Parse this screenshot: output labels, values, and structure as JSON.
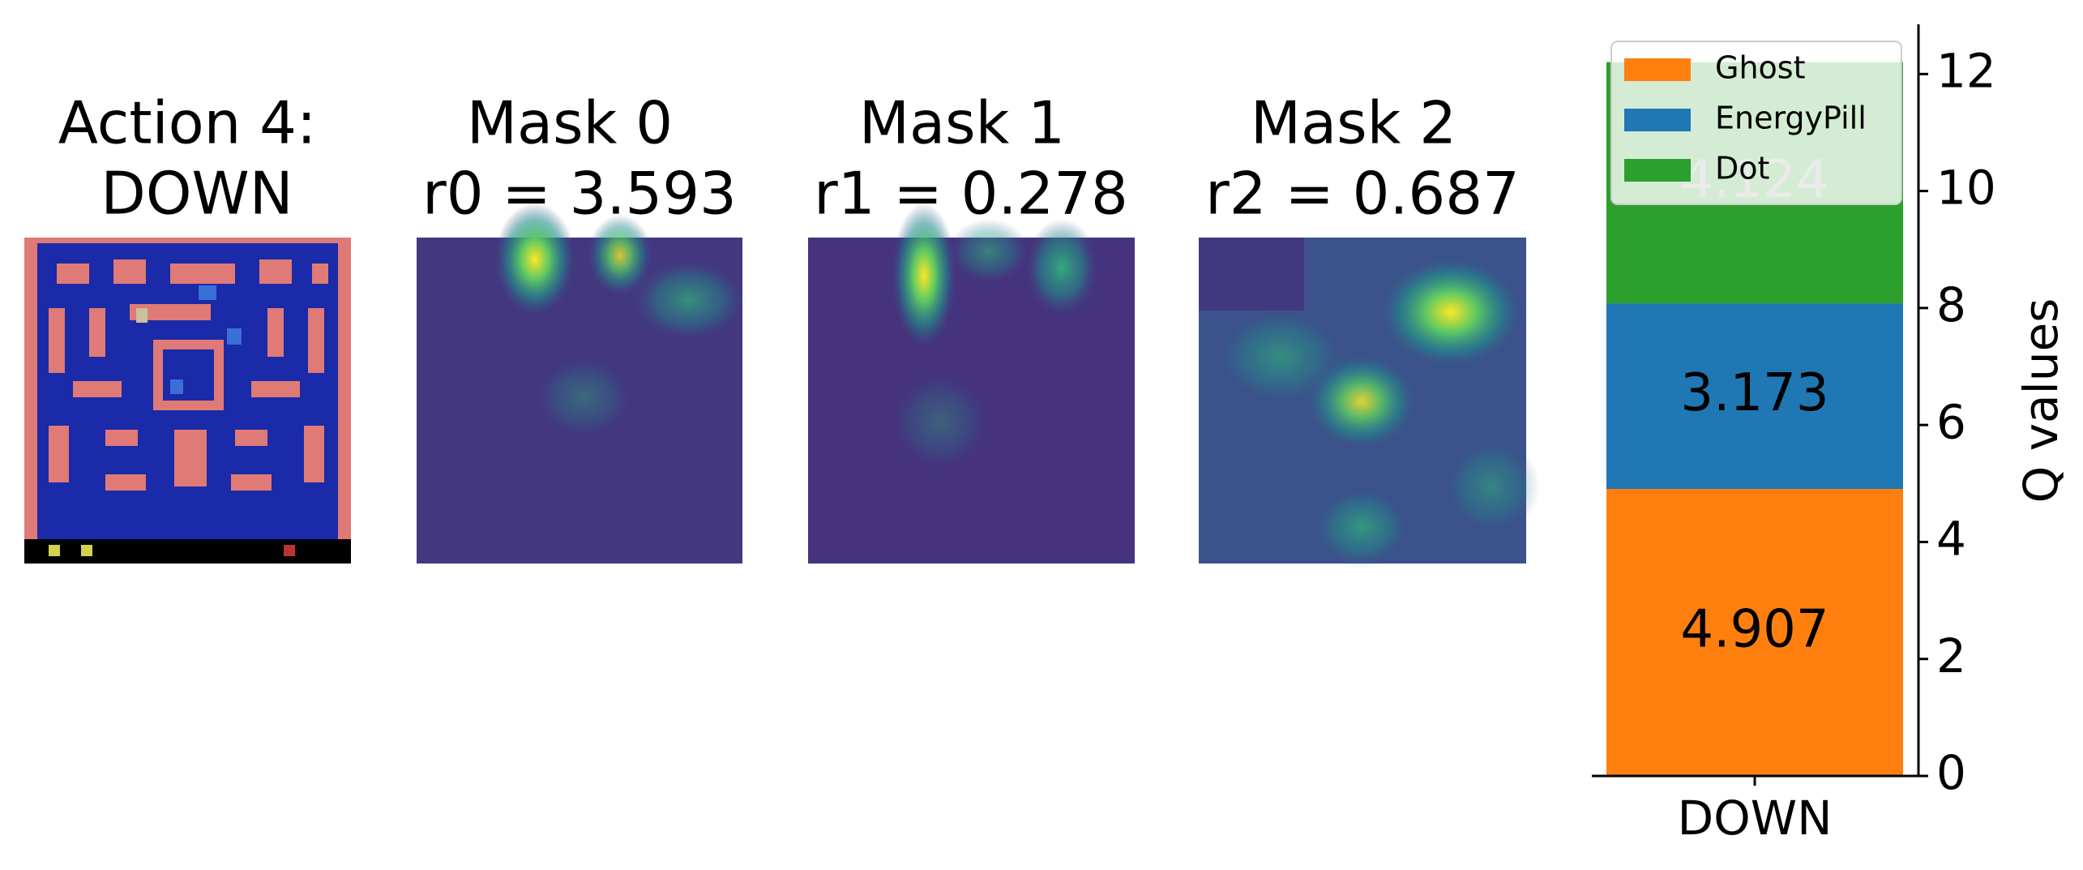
{
  "panels": [
    {
      "title": [
        "Action 4:",
        "DOWN"
      ]
    },
    {
      "title": [
        "Mask 0",
        "r0 = 3.593"
      ]
    },
    {
      "title": [
        "Mask 1",
        "r1 = 0.278"
      ]
    },
    {
      "title": [
        "Mask 2",
        "r2 = 0.687"
      ]
    }
  ],
  "chart_data": {
    "type": "stacked-bar",
    "categories": [
      "DOWN"
    ],
    "series": [
      {
        "name": "Ghost",
        "color": "#ff7f0e",
        "values": [
          4.907
        ]
      },
      {
        "name": "EnergyPill",
        "color": "#1f77b4",
        "values": [
          3.173
        ]
      },
      {
        "name": "Dot",
        "color": "#2ca02c",
        "values": [
          4.124
        ]
      }
    ],
    "ylabel": "Q values",
    "ylim": [
      0,
      12.85
    ],
    "yticks": [
      0,
      2,
      4,
      6,
      8,
      10,
      12
    ],
    "y_axis_side": "right",
    "legend": "upper left"
  }
}
